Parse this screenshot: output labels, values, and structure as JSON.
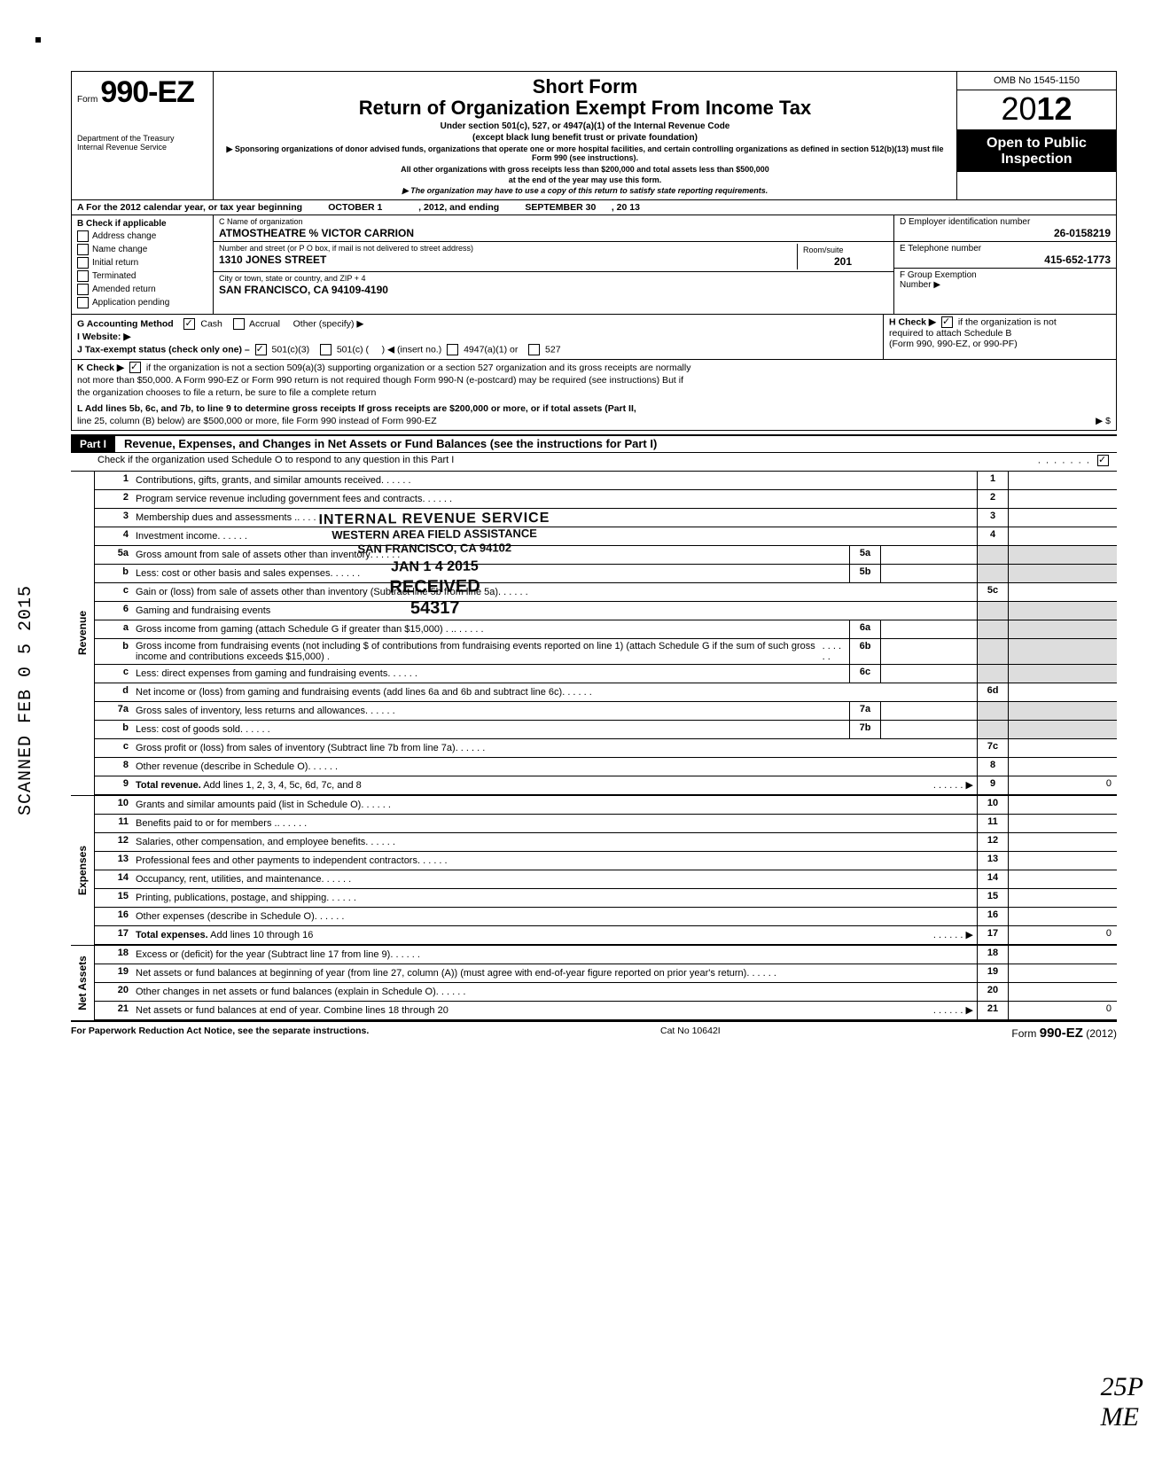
{
  "meta": {
    "omb": "OMB No  1545-1150",
    "form_prefix": "Form",
    "form_number": "990-EZ",
    "year_prefix": "20",
    "year_bold": "12",
    "dept1": "Department of the Treasury",
    "dept2": "Internal Revenue Service",
    "short_form": "Short Form",
    "return_title": "Return of Organization Exempt From Income Tax",
    "under": "Under section 501(c), 527, or 4947(a)(1) of the Internal Revenue Code",
    "except": "(except black lung benefit trust or private foundation)",
    "sponsor1": "▶ Sponsoring organizations of donor advised funds, organizations that operate one or more hospital facilities, and certain controlling organizations as defined in section 512(b)(13) must file Form 990 (see instructions).",
    "sponsor2": "All other organizations with gross receipts less than $200,000 and total assets less than $500,000",
    "sponsor3": "at the end of the year may use this form.",
    "satisfy": "▶ The organization may have to use a copy of this return to satisfy state reporting requirements.",
    "open1": "Open to Public",
    "open2": "Inspection"
  },
  "rowA": {
    "a": "A  For the 2012 calendar year, or tax year beginning",
    "begin": "OCTOBER 1",
    "mid": ", 2012, and ending",
    "end": "SEPTEMBER 30",
    "tail": ", 20    13"
  },
  "colB": {
    "hdr": "B  Check if applicable",
    "items": [
      "Address change",
      "Name change",
      "Initial return",
      "Terminated",
      "Amended return",
      "Application pending"
    ]
  },
  "org": {
    "c_label": "C  Name of organization",
    "name": "ATMOSTHEATRE % VICTOR CARRION",
    "addr_label": "Number and street (or P O  box, if mail is not delivered to street address)",
    "street": "1310 JONES STREET",
    "room_label": "Room/suite",
    "room": "201",
    "city_label": "City or town, state or country, and ZIP + 4",
    "city": "SAN FRANCISCO, CA 94109-4190"
  },
  "right": {
    "d_label": "D Employer identification number",
    "ein": "26-0158219",
    "e_label": "E Telephone number",
    "phone": "415-652-1773",
    "f_label": "F  Group Exemption",
    "f_label2": "Number  ▶"
  },
  "ghij": {
    "g": "G  Accounting Method",
    "cash": "Cash",
    "accrual": "Accrual",
    "other": "Other (specify) ▶",
    "i": "I   Website: ▶",
    "j": "J  Tax-exempt status (check only one) –",
    "j1": "501(c)(3)",
    "j2": "501(c) (",
    "j_insert": ")  ◀ (insert no.)",
    "j3": "4947(a)(1) or",
    "j4": "527",
    "h": "H  Check ▶",
    "h2": "if the organization is not",
    "h3": "required to attach Schedule B",
    "h4": "(Form 990, 990-EZ, or 990-PF)"
  },
  "k": {
    "k": "K  Check ▶",
    "k1": "if the organization is not a section 509(a)(3) supporting organization or a section 527 organization and its gross receipts are normally",
    "k2": "not more than $50,000. A Form 990-EZ or Form 990 return is not required though Form 990-N (e-postcard) may be required (see instructions)  But if",
    "k3": "the organization chooses to file a return, be sure to file a complete return",
    "l": "L  Add lines 5b, 6c, and 7b, to line 9 to determine gross receipts  If gross receipts are $200,000 or more, or if total assets (Part II,",
    "l2": "line 25, column (B) below) are $500,000 or more, file Form 990 instead of Form 990-EZ",
    "l_arrow": "▶   $"
  },
  "part1": {
    "tab": "Part I",
    "title": "Revenue, Expenses, and Changes in Net Assets or Fund Balances (see the instructions for Part I)",
    "check": "Check if the organization used Schedule O to respond to any question in this Part I"
  },
  "stamp": {
    "s1": "INTERNAL REVENUE SERVICE",
    "s2": "WESTERN AREA FIELD ASSISTANCE",
    "s3": "SAN FRANCISCO, CA  94102",
    "s4": "JAN 1 4 2015",
    "s5": "RECEIVED",
    "s6": "54317"
  },
  "scanned": "SCANNED FEB 0 5 2015",
  "revenue": [
    {
      "n": "1",
      "d": "Contributions, gifts, grants, and similar amounts received",
      "rc": "1"
    },
    {
      "n": "2",
      "d": "Program service revenue including government fees and contracts",
      "rc": "2"
    },
    {
      "n": "3",
      "d": "Membership dues and assessments .",
      "rc": "3"
    },
    {
      "n": "4",
      "d": "Investment income",
      "rc": "4"
    },
    {
      "n": "5a",
      "d": "Gross amount from sale of assets other than inventory",
      "ib": "5a"
    },
    {
      "n": "b",
      "d": "Less: cost or other basis and sales expenses",
      "ib": "5b"
    },
    {
      "n": "c",
      "d": "Gain or (loss) from sale of assets other than inventory (Subtract line 5b from line 5a)",
      "rc": "5c"
    },
    {
      "n": "6",
      "d": "Gaming and fundraising events"
    },
    {
      "n": "a",
      "d": "Gross income from gaming (attach Schedule G if greater than $15,000) . .",
      "ib": "6a"
    },
    {
      "n": "b",
      "d": "Gross income from fundraising events (not including  $                     of contributions from fundraising events reported on line 1) (attach Schedule G if the sum of such gross income and contributions exceeds $15,000) .",
      "ib": "6b"
    },
    {
      "n": "c",
      "d": "Less: direct expenses from gaming and fundraising events",
      "ib": "6c"
    },
    {
      "n": "d",
      "d": "Net income or (loss) from gaming and fundraising events (add lines 6a and 6b and subtract line 6c)",
      "rc": "6d"
    },
    {
      "n": "7a",
      "d": "Gross sales of inventory, less returns and allowances",
      "ib": "7a"
    },
    {
      "n": "b",
      "d": "Less: cost of goods sold",
      "ib": "7b"
    },
    {
      "n": "c",
      "d": "Gross profit or (loss) from sales of inventory (Subtract line 7b from line 7a)",
      "rc": "7c"
    },
    {
      "n": "8",
      "d": "Other revenue (describe in Schedule O)",
      "rc": "8"
    },
    {
      "n": "9",
      "d": "Total revenue. Add lines 1, 2, 3, 4, 5c, 6d, 7c, and 8",
      "rc": "9",
      "val": "0",
      "bold": true,
      "arrow": true
    }
  ],
  "expenses": [
    {
      "n": "10",
      "d": "Grants and similar amounts paid (list in Schedule O)",
      "rc": "10"
    },
    {
      "n": "11",
      "d": "Benefits paid to or for members  .",
      "rc": "11"
    },
    {
      "n": "12",
      "d": "Salaries, other compensation, and employee benefits",
      "rc": "12"
    },
    {
      "n": "13",
      "d": "Professional fees and other payments to independent contractors",
      "rc": "13"
    },
    {
      "n": "14",
      "d": "Occupancy, rent, utilities, and maintenance",
      "rc": "14"
    },
    {
      "n": "15",
      "d": "Printing, publications, postage, and shipping",
      "rc": "15"
    },
    {
      "n": "16",
      "d": "Other expenses (describe in Schedule O)",
      "rc": "16"
    },
    {
      "n": "17",
      "d": "Total expenses. Add lines 10 through 16",
      "rc": "17",
      "val": "0",
      "bold": true,
      "arrow": true
    }
  ],
  "netassets": [
    {
      "n": "18",
      "d": "Excess or (deficit) for the year (Subtract line 17 from line 9)",
      "rc": "18"
    },
    {
      "n": "19",
      "d": "Net assets or fund balances at beginning of year (from line 27, column (A)) (must agree with end-of-year figure reported on prior year's return)",
      "rc": "19"
    },
    {
      "n": "20",
      "d": "Other changes in net assets or fund balances (explain in Schedule O)",
      "rc": "20"
    },
    {
      "n": "21",
      "d": "Net assets or fund balances at end of year. Combine lines 18 through 20",
      "rc": "21",
      "val": "0",
      "arrow": true
    }
  ],
  "footer": {
    "left": "For Paperwork Reduction Act Notice, see the separate instructions.",
    "mid": "Cat  No  10642I",
    "right_form": "Form",
    "right_num": "990-EZ",
    "right_year": "(2012)"
  },
  "hand": {
    "a": "25P",
    "b": "ME"
  }
}
